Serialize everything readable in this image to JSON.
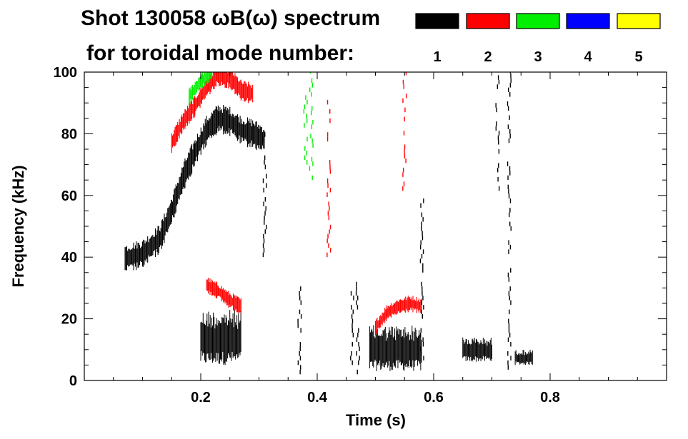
{
  "chart_data": {
    "type": "heatmap",
    "title_line1": "Shot 130058 ωB(ω) spectrum",
    "title_line2": "for toroidal mode number:",
    "xlabel": "Time (s)",
    "ylabel": "Frequency (kHz)",
    "xlim": [
      0.0,
      1.0
    ],
    "ylim": [
      0,
      100
    ],
    "x_ticks": [
      0.2,
      0.4,
      0.6,
      0.8
    ],
    "x_tick_labels": [
      "0.2",
      "0.4",
      "0.6",
      "0.8"
    ],
    "y_ticks": [
      0,
      20,
      40,
      60,
      80,
      100
    ],
    "y_tick_labels": [
      "0",
      "20",
      "40",
      "60",
      "80",
      "100"
    ],
    "legend": {
      "placement": "top-right",
      "entries": [
        {
          "n": "1",
          "color": "#000000"
        },
        {
          "n": "2",
          "color": "#ff0000"
        },
        {
          "n": "3",
          "color": "#00ee00"
        },
        {
          "n": "4",
          "color": "#0000ff"
        },
        {
          "n": "5",
          "color": "#ffff00"
        }
      ]
    },
    "features": [
      {
        "name": "n=1 chirping mode",
        "mode": 1,
        "points": [
          [
            0.07,
            39.5
          ],
          [
            0.1,
            41
          ],
          [
            0.13,
            46
          ],
          [
            0.15,
            55
          ],
          [
            0.17,
            66
          ],
          [
            0.19,
            74
          ],
          [
            0.21,
            81
          ],
          [
            0.23,
            85
          ],
          [
            0.25,
            84
          ],
          [
            0.27,
            81
          ],
          [
            0.29,
            80
          ],
          [
            0.31,
            78
          ]
        ],
        "width": 7
      },
      {
        "name": "n=2 chirping mode",
        "mode": 2,
        "points": [
          [
            0.15,
            77
          ],
          [
            0.17,
            84
          ],
          [
            0.19,
            89
          ],
          [
            0.21,
            95
          ],
          [
            0.23,
            99
          ],
          [
            0.25,
            98
          ],
          [
            0.27,
            94
          ],
          [
            0.29,
            93
          ]
        ],
        "width": 5
      },
      {
        "name": "n=3 chirping mode",
        "mode": 3,
        "points": [
          [
            0.18,
            92
          ],
          [
            0.2,
            97
          ],
          [
            0.22,
            100
          ]
        ],
        "width": 4
      },
      {
        "name": "n=2 low frequency mode",
        "mode": 2,
        "points": [
          [
            0.21,
            31
          ],
          [
            0.23,
            29
          ],
          [
            0.25,
            26
          ],
          [
            0.27,
            24
          ]
        ],
        "width": 4
      },
      {
        "name": "n=2 late mode",
        "mode": 2,
        "points": [
          [
            0.5,
            17
          ],
          [
            0.52,
            22
          ],
          [
            0.54,
            24
          ],
          [
            0.56,
            25
          ],
          [
            0.58,
            24
          ]
        ],
        "width": 4
      }
    ],
    "blobs": [
      {
        "mode": 1,
        "x": [
          0.2,
          0.27
        ],
        "y": [
          5,
          23
        ]
      },
      {
        "mode": 1,
        "x": [
          0.49,
          0.58
        ],
        "y": [
          3,
          18
        ]
      },
      {
        "mode": 1,
        "x": [
          0.65,
          0.7
        ],
        "y": [
          6,
          14
        ]
      },
      {
        "mode": 1,
        "x": [
          0.74,
          0.77
        ],
        "y": [
          5,
          10
        ]
      }
    ],
    "streaks": [
      {
        "mode": 1,
        "x": 0.71,
        "y": [
          60,
          100
        ]
      },
      {
        "mode": 1,
        "x": 0.73,
        "y": [
          2,
          100
        ]
      },
      {
        "mode": 1,
        "x": 0.31,
        "y": [
          40,
          80
        ]
      },
      {
        "mode": 1,
        "x": 0.37,
        "y": [
          2,
          30
        ]
      },
      {
        "mode": 1,
        "x": 0.46,
        "y": [
          5,
          30
        ]
      },
      {
        "mode": 1,
        "x": 0.47,
        "y": [
          2,
          32
        ]
      },
      {
        "mode": 1,
        "x": 0.58,
        "y": [
          5,
          60
        ]
      },
      {
        "mode": 3,
        "x": 0.38,
        "y": [
          70,
          100
        ]
      },
      {
        "mode": 3,
        "x": 0.39,
        "y": [
          65,
          100
        ]
      },
      {
        "mode": 2,
        "x": 0.42,
        "y": [
          40,
          90
        ]
      },
      {
        "mode": 2,
        "x": 0.55,
        "y": [
          60,
          100
        ]
      }
    ]
  }
}
